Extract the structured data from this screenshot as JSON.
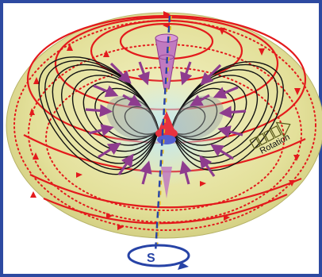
{
  "diagram": {
    "labels": {
      "rotation": "Rotation",
      "axis_symbol": "S"
    },
    "colors": {
      "frame": "#2d4aa1",
      "torus_fill": "#e8e6a4",
      "field_lines": "#e31a1c",
      "magnetic_contours": "#111111",
      "inflow_arrows": "#8e3c8e",
      "axis_dashed": "#e6b820",
      "axis_blue": "#2743a6",
      "core_red": "#e8323f",
      "core_blue": "#5560d0",
      "cone": "#c07ac0",
      "rotation_arrow": "#5a5a1a"
    },
    "icons": [
      "field-loop-arrows",
      "inflow-arrows",
      "rotation-arrow",
      "spin-arrow"
    ]
  }
}
